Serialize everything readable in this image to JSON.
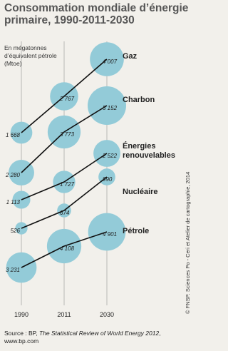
{
  "chart_data": {
    "type": "bubble-slope",
    "title": "Consommation mondiale d’énergie primaire, 1990-2011-2030",
    "subtitle": "En mégatonnes d’équivalent pétrole (Mtoe)",
    "categories": [
      "1990",
      "2011",
      "2030"
    ],
    "bubble_color": "#93cbd8",
    "line_color": "#111111",
    "series": [
      {
        "name": "Gaz",
        "values": [
          1668,
          2767,
          4007
        ],
        "value_labels": [
          "1 668",
          "2 767",
          "4 007"
        ]
      },
      {
        "name": "Charbon",
        "values": [
          2280,
          3773,
          5152
        ],
        "value_labels": [
          "2 280",
          "3 773",
          "5 152"
        ]
      },
      {
        "name": "Énergies renouvelables",
        "values": [
          1113,
          1727,
          2522
        ],
        "value_labels": [
          "1 113",
          "1 727",
          "2 522"
        ]
      },
      {
        "name": "Nucléaire",
        "values": [
          526,
          674,
          990
        ],
        "value_labels": [
          "526",
          "674",
          "990"
        ]
      },
      {
        "name": "Pétrole",
        "values": [
          3231,
          4108,
          4901
        ],
        "value_labels": [
          "3 231",
          "4 108",
          "4 901"
        ]
      }
    ],
    "credit": "© FNSP. Sciences Po - Ceri et Atelier de cartographie, 2014",
    "source": [
      "Source : BP,",
      "The Statistical Review of World Energy 2012",
      ", www.bp.com"
    ]
  }
}
